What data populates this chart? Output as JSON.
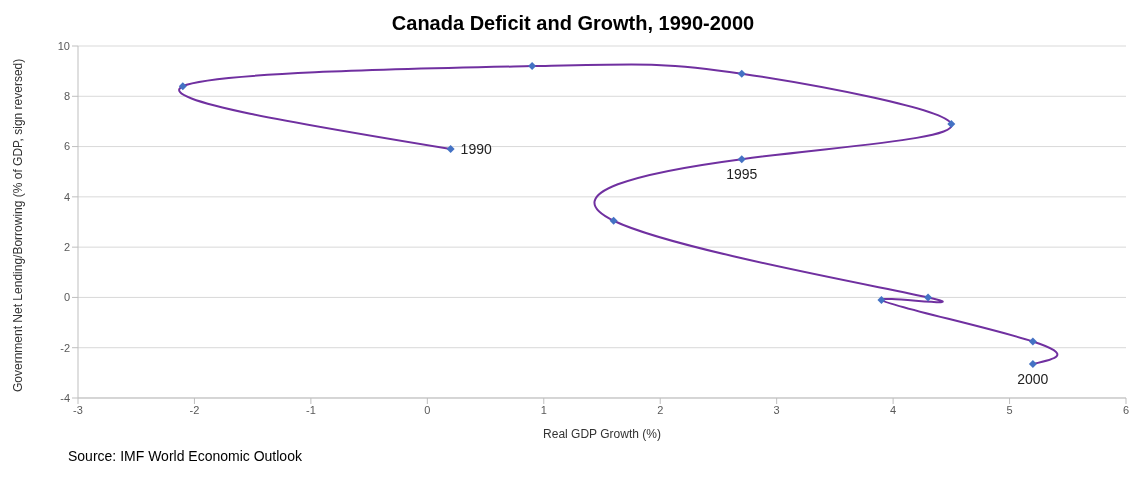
{
  "chart_data": {
    "type": "line",
    "title": "Canada Deficit and Growth, 1990-2000",
    "xlabel": "Real GDP Growth (%)",
    "ylabel": "Government Net Lending/Borrowing (% of GDP,  sign reversed)",
    "x": [
      0.2,
      -2.1,
      0.9,
      2.7,
      4.5,
      2.7,
      1.6,
      4.3,
      3.9,
      5.2,
      5.2
    ],
    "series": [
      {
        "color": "#7030a0",
        "colors": [
          "#4472c4",
          "#4472c4",
          "#4472c4",
          "#4472c4",
          "#4472c4",
          "#4472c4",
          "#4472c4",
          "#4472c4",
          "#4472c4",
          "#4472c4",
          "#4472c4"
        ],
        "values": [
          5.9,
          8.4,
          9.2,
          8.9,
          6.9,
          5.5,
          3.05,
          0,
          -0.1,
          -1.75,
          -2.65
        ]
      }
    ],
    "xlim": [
      -3,
      6
    ],
    "xticks": [
      -3,
      -2,
      -1,
      0,
      1,
      2,
      3,
      4,
      5,
      6
    ],
    "ylim": [
      -4,
      10
    ],
    "yticks": [
      -4,
      -2,
      0,
      2,
      4,
      6,
      8,
      10
    ],
    "grid": "y",
    "marker": "diamond",
    "legend": false,
    "annotations": [
      {
        "text": "1990",
        "x": 0.2,
        "y": 5.9
      },
      {
        "text": "1995",
        "x": 2.7,
        "y": 5.5
      },
      {
        "text": "2000",
        "x": 5.2,
        "y": -2.65
      },
      "Source: IMF World Economic Outlook"
    ]
  }
}
